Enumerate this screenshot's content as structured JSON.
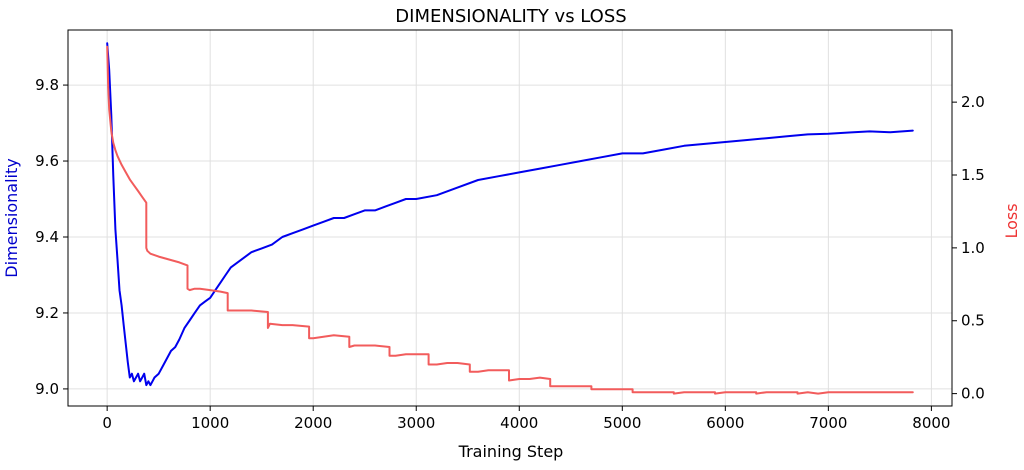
{
  "chart_data": {
    "type": "line",
    "title": "DIMENSIONALITY vs LOSS",
    "xlabel": "Training Step",
    "ylabel": "Dimensionality",
    "ylabel_right": "Loss",
    "xlim": [
      -380,
      8200
    ],
    "ylim": [
      8.955,
      9.945
    ],
    "ylim_right": [
      -0.085,
      2.495
    ],
    "xticks": [
      0,
      1000,
      2000,
      3000,
      4000,
      5000,
      6000,
      7000,
      8000
    ],
    "xtick_labels": [
      "0",
      "1000",
      "2000",
      "3000",
      "4000",
      "5000",
      "6000",
      "7000",
      "8000"
    ],
    "yticks": [
      9.0,
      9.2,
      9.4,
      9.6,
      9.8
    ],
    "ytick_labels": [
      "9.0",
      "9.2",
      "9.4",
      "9.6",
      "9.8"
    ],
    "yticks_right": [
      0.0,
      0.5,
      1.0,
      1.5,
      2.0
    ],
    "ytick_labels_right": [
      "0.0",
      "0.5",
      "1.0",
      "1.5",
      "2.0"
    ],
    "grid": true,
    "series": [
      {
        "name": "Dimensionality",
        "axis": "left",
        "color": "#0000ee",
        "x": [
          0,
          20,
          40,
          60,
          80,
          100,
          120,
          140,
          160,
          180,
          200,
          220,
          240,
          260,
          280,
          300,
          320,
          340,
          360,
          380,
          400,
          420,
          440,
          460,
          500,
          540,
          580,
          620,
          660,
          700,
          750,
          800,
          850,
          900,
          950,
          1000,
          1050,
          1100,
          1150,
          1200,
          1300,
          1400,
          1500,
          1600,
          1700,
          1800,
          1900,
          2000,
          2100,
          2200,
          2300,
          2400,
          2500,
          2600,
          2700,
          2800,
          2900,
          3000,
          3200,
          3400,
          3600,
          3800,
          4000,
          4200,
          4400,
          4600,
          4800,
          5000,
          5200,
          5400,
          5600,
          5800,
          6000,
          6200,
          6400,
          6600,
          6800,
          7000,
          7200,
          7400,
          7600,
          7820
        ],
        "values": [
          9.91,
          9.84,
          9.72,
          9.56,
          9.42,
          9.34,
          9.26,
          9.22,
          9.17,
          9.12,
          9.07,
          9.03,
          9.04,
          9.02,
          9.03,
          9.04,
          9.02,
          9.03,
          9.04,
          9.01,
          9.02,
          9.01,
          9.02,
          9.03,
          9.04,
          9.06,
          9.08,
          9.1,
          9.11,
          9.13,
          9.16,
          9.18,
          9.2,
          9.22,
          9.23,
          9.24,
          9.26,
          9.28,
          9.3,
          9.32,
          9.34,
          9.36,
          9.37,
          9.38,
          9.4,
          9.41,
          9.42,
          9.43,
          9.44,
          9.45,
          9.45,
          9.46,
          9.47,
          9.47,
          9.48,
          9.49,
          9.5,
          9.5,
          9.51,
          9.53,
          9.55,
          9.56,
          9.57,
          9.58,
          9.59,
          9.6,
          9.61,
          9.62,
          9.62,
          9.63,
          9.64,
          9.645,
          9.65,
          9.655,
          9.66,
          9.665,
          9.67,
          9.672,
          9.675,
          9.678,
          9.676,
          9.68
        ]
      },
      {
        "name": "Loss",
        "axis": "right",
        "color": "#f25c5c",
        "x": [
          0,
          10,
          20,
          40,
          60,
          80,
          100,
          140,
          180,
          220,
          260,
          300,
          340,
          380,
          380,
          390,
          420,
          500,
          600,
          700,
          780,
          780,
          800,
          850,
          900,
          1000,
          1100,
          1170,
          1170,
          1200,
          1300,
          1400,
          1560,
          1560,
          1580,
          1700,
          1800,
          1960,
          1960,
          2000,
          2100,
          2200,
          2350,
          2350,
          2400,
          2500,
          2600,
          2740,
          2740,
          2800,
          2900,
          3000,
          3120,
          3120,
          3200,
          3300,
          3400,
          3520,
          3520,
          3600,
          3700,
          3800,
          3900,
          3900,
          4000,
          4100,
          4200,
          4300,
          4300,
          4400,
          4500,
          4600,
          4700,
          4700,
          4800,
          4900,
          5000,
          5100,
          5100,
          5200,
          5300,
          5400,
          5500,
          5500,
          5600,
          5700,
          5800,
          5900,
          5900,
          6000,
          6100,
          6200,
          6300,
          6300,
          6400,
          6500,
          6600,
          6700,
          6700,
          6800,
          6900,
          7000,
          7100,
          7200,
          7300,
          7400,
          7500,
          7600,
          7820
        ],
        "values": [
          2.38,
          2.1,
          1.95,
          1.8,
          1.72,
          1.67,
          1.63,
          1.57,
          1.52,
          1.47,
          1.43,
          1.39,
          1.35,
          1.31,
          1.0,
          0.98,
          0.96,
          0.94,
          0.92,
          0.9,
          0.88,
          0.72,
          0.71,
          0.72,
          0.72,
          0.71,
          0.7,
          0.69,
          0.57,
          0.57,
          0.57,
          0.57,
          0.56,
          0.45,
          0.48,
          0.47,
          0.47,
          0.46,
          0.38,
          0.38,
          0.39,
          0.4,
          0.39,
          0.32,
          0.33,
          0.33,
          0.33,
          0.32,
          0.26,
          0.26,
          0.27,
          0.27,
          0.27,
          0.2,
          0.2,
          0.21,
          0.21,
          0.2,
          0.15,
          0.15,
          0.16,
          0.16,
          0.16,
          0.09,
          0.1,
          0.1,
          0.11,
          0.1,
          0.05,
          0.05,
          0.05,
          0.05,
          0.05,
          0.03,
          0.03,
          0.03,
          0.03,
          0.03,
          0.01,
          0.01,
          0.01,
          0.01,
          0.01,
          0.0,
          0.01,
          0.01,
          0.01,
          0.01,
          0.0,
          0.01,
          0.01,
          0.01,
          0.01,
          0.0,
          0.01,
          0.01,
          0.01,
          0.01,
          0.0,
          0.01,
          0.0,
          0.01,
          0.01,
          0.01,
          0.01,
          0.01,
          0.01,
          0.01,
          0.01
        ]
      }
    ]
  },
  "colors": {
    "dimensionality_axis": "#0000cc",
    "loss_axis": "#ee3333",
    "grid": "#e0e0e0",
    "frame": "#000000"
  }
}
